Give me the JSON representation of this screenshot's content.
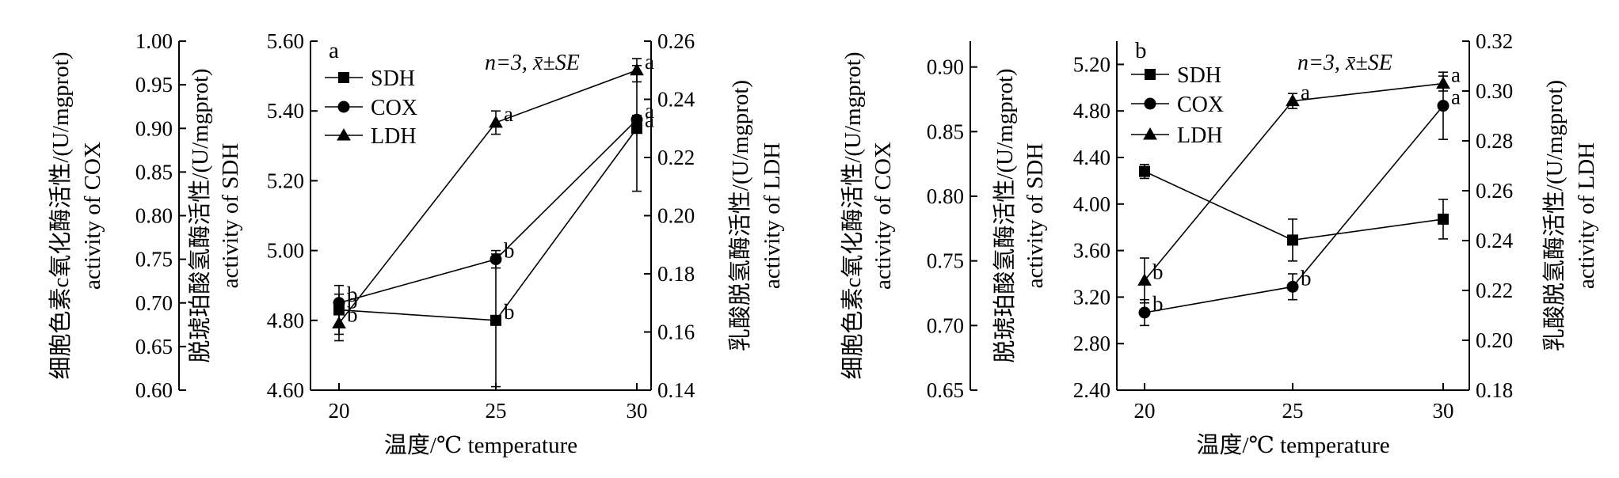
{
  "chart_data": [
    {
      "type": "line",
      "panel_label": "a",
      "xlabel": "温度/℃ temperature",
      "categories": [
        20,
        25,
        30
      ],
      "stat_note": "n=3, x̄±SE",
      "axes": {
        "COX": {
          "title_cn": "细胞色素c氧化酶活性/(U/mgprot)",
          "title_en": "activity of COX",
          "ylim": [
            0.6,
            1.0
          ],
          "ticks": [
            "0.60",
            "0.65",
            "0.70",
            "0.75",
            "0.80",
            "0.85",
            "0.90",
            "0.95",
            "1.00"
          ]
        },
        "SDH": {
          "title_cn": "脱琥珀酸氢酶活性/(U/mgprot)",
          "title_en": "activity of SDH",
          "ylim": [
            4.6,
            5.6
          ],
          "ticks": [
            "4.60",
            "4.80",
            "5.00",
            "5.20",
            "5.40",
            "5.60"
          ]
        },
        "LDH": {
          "title_cn": "乳酸脱氢酶活性/(U/mgprot)",
          "title_en": "activity of LDH",
          "ylim": [
            0.14,
            0.26
          ],
          "ticks": [
            "0.14",
            "0.16",
            "0.18",
            "0.20",
            "0.22",
            "0.24",
            "0.26"
          ]
        }
      },
      "series": [
        {
          "name": "SDH",
          "axis": "SDH",
          "marker": "square",
          "values": [
            4.83,
            4.8,
            5.35
          ],
          "errors": [
            0.07,
            0.19,
            0.18
          ],
          "letters": [
            "b",
            "b",
            "a"
          ]
        },
        {
          "name": "COX",
          "axis": "COX",
          "marker": "circle",
          "values": [
            0.7,
            0.75,
            0.91
          ],
          "errors": [
            0.01,
            0.01,
            0.005
          ],
          "letters": [
            "b",
            "b",
            "a"
          ]
        },
        {
          "name": "LDH",
          "axis": "LDH",
          "marker": "triangle",
          "values": [
            0.163,
            0.232,
            0.25
          ],
          "errors": [
            0.006,
            0.004,
            0.004
          ],
          "letters": [
            "b",
            "a",
            "a"
          ]
        }
      ]
    },
    {
      "type": "line",
      "panel_label": "b",
      "xlabel": "温度/℃ temperature",
      "categories": [
        20,
        25,
        30
      ],
      "stat_note": "n=3, x̄±SE",
      "axes": {
        "COX": {
          "title_cn": "细胞色素c氧化酶活性/(U/mgprot)",
          "title_en": "activity of COX",
          "ylim": [
            0.65,
            0.92
          ],
          "ticks": [
            "0.65",
            "0.70",
            "0.75",
            "0.80",
            "0.85",
            "0.90"
          ]
        },
        "SDH": {
          "title_cn": "脱琥珀酸氢酶活性/(U/mgprot)",
          "title_en": "activity of SDH",
          "ylim": [
            2.4,
            5.4
          ],
          "ticks": [
            "2.40",
            "2.80",
            "3.20",
            "3.60",
            "4.00",
            "4.40",
            "4.80",
            "5.20"
          ]
        },
        "LDH": {
          "title_cn": "乳酸脱氢酶活性/(U/mgprot)",
          "title_en": "activity of LDH",
          "ylim": [
            0.18,
            0.32
          ],
          "ticks": [
            "0.18",
            "0.20",
            "0.22",
            "0.24",
            "0.26",
            "0.28",
            "0.30",
            "0.32"
          ]
        }
      },
      "series": [
        {
          "name": "SDH",
          "axis": "SDH",
          "marker": "square",
          "values": [
            4.28,
            3.69,
            3.87
          ],
          "errors": [
            0.06,
            0.18,
            0.17
          ],
          "letters": [
            "",
            "",
            ""
          ]
        },
        {
          "name": "COX",
          "axis": "COX",
          "marker": "circle",
          "values": [
            0.71,
            0.73,
            0.87
          ],
          "errors": [
            0.01,
            0.01,
            0.026
          ],
          "letters": [
            "b",
            "b",
            "a"
          ]
        },
        {
          "name": "LDH",
          "axis": "LDH",
          "marker": "triangle",
          "values": [
            0.224,
            0.296,
            0.303
          ],
          "errors": [
            0.009,
            0.003,
            0.003
          ],
          "letters": [
            "b",
            "a",
            "a"
          ]
        }
      ]
    }
  ]
}
